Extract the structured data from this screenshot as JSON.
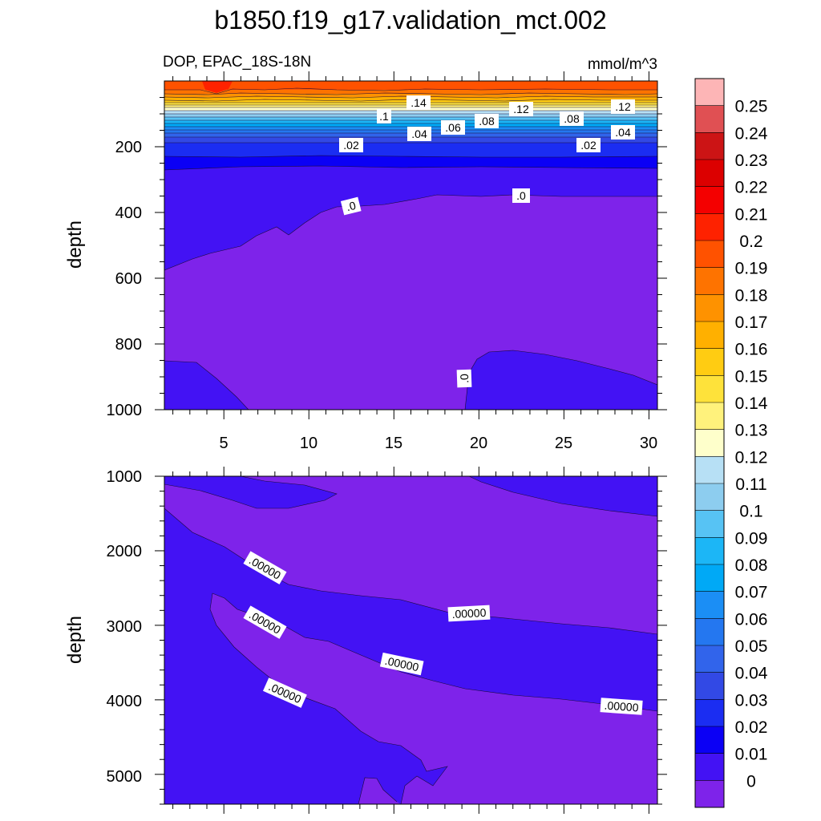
{
  "title": "b1850.f19_g17.validation_mct.002",
  "left_subtitle": "DOP, EPAC_18S-18N",
  "right_subtitle": "mmol/m^3",
  "chart_data": [
    {
      "type": "heatmap",
      "panel": "upper",
      "variable": "DOP",
      "region": "EPAC_18S-18N",
      "units": "mmol/m^3",
      "xlabel": "",
      "ylabel": "depth",
      "xlim": [
        1.5,
        30.5
      ],
      "ylim": [
        0,
        1000
      ],
      "y_inverted": true,
      "x_ticks": [
        5,
        10,
        15,
        20,
        25,
        30
      ],
      "y_ticks": [
        200,
        400,
        600,
        800,
        1000
      ],
      "x": [
        2,
        5,
        7,
        10,
        15,
        20,
        25,
        30
      ],
      "depth": [
        10,
        50,
        100,
        150,
        200,
        300,
        400,
        600,
        800,
        900,
        1000
      ],
      "values_by_depth": [
        [
          0.18,
          0.19,
          0.18,
          0.18,
          0.17,
          0.17,
          0.17,
          0.16
        ],
        [
          0.16,
          0.16,
          0.16,
          0.16,
          0.15,
          0.15,
          0.15,
          0.14
        ],
        [
          0.1,
          0.11,
          0.11,
          0.1,
          0.1,
          0.09,
          0.09,
          0.1
        ],
        [
          0.05,
          0.05,
          0.05,
          0.05,
          0.04,
          0.04,
          0.04,
          0.05
        ],
        [
          0.02,
          0.02,
          0.02,
          0.02,
          0.015,
          0.015,
          0.015,
          0.02
        ],
        [
          0.005,
          0.005,
          0.005,
          0.005,
          0.005,
          0.005,
          0.005,
          0.005
        ],
        [
          0.005,
          0.005,
          0.005,
          0.005,
          0,
          0,
          0,
          0
        ],
        [
          0.005,
          0,
          0,
          0,
          0,
          0,
          0,
          0
        ],
        [
          0,
          0,
          0,
          0,
          0,
          0,
          0,
          0
        ],
        [
          0.005,
          0.005,
          0,
          0,
          0,
          0.005,
          0.005,
          0.005
        ],
        [
          0.005,
          0.005,
          0,
          0,
          0,
          0.005,
          0.005,
          0.005
        ]
      ],
      "contour_labels": [
        ".14",
        ".12",
        ".12",
        ".1",
        ".08",
        ".08",
        ".06",
        ".04",
        ".04",
        ".02",
        ".02",
        ".0",
        ".0",
        ".0"
      ]
    },
    {
      "type": "heatmap",
      "panel": "lower",
      "variable": "DOP",
      "units": "mmol/m^3",
      "xlabel": "",
      "ylabel": "depth",
      "xlim": [
        1.5,
        30.5
      ],
      "ylim": [
        1000,
        5400
      ],
      "y_inverted": true,
      "y_ticks": [
        1000,
        2000,
        3000,
        4000,
        5000
      ],
      "x": [
        2,
        5,
        10,
        15,
        20,
        25,
        30
      ],
      "depth": [
        1000,
        1500,
        2000,
        2500,
        3000,
        3500,
        4000,
        4500,
        5000,
        5400
      ],
      "values_by_depth": [
        [
          0,
          0.005,
          0.005,
          0,
          0,
          0.005,
          0.005
        ],
        [
          0.005,
          0,
          0,
          0,
          0,
          0,
          0.005
        ],
        [
          0.005,
          0.005,
          0,
          0,
          0,
          0,
          0
        ],
        [
          0.005,
          0.005,
          0.005,
          0.005,
          0,
          0,
          0
        ],
        [
          0.005,
          0.005,
          0,
          0.005,
          0.005,
          0.005,
          0.005
        ],
        [
          0.005,
          0.005,
          0,
          0,
          0.005,
          0.005,
          0.005
        ],
        [
          0.005,
          0.005,
          0.005,
          0,
          0,
          0,
          0
        ],
        [
          0.005,
          0.005,
          0.005,
          0.005,
          0,
          0,
          0
        ],
        [
          0.005,
          0.005,
          0.005,
          0.005,
          0,
          0,
          0
        ],
        [
          0.005,
          0.005,
          0,
          0.005,
          0,
          0,
          0
        ]
      ],
      "contour_labels": [
        ".00000",
        ".00000",
        ".00000",
        ".00000",
        ".00000",
        ".00000"
      ]
    }
  ],
  "colorbar": {
    "labels": [
      "0.25",
      "0.24",
      "0.23",
      "0.22",
      "0.21",
      "0.2",
      "0.19",
      "0.18",
      "0.17",
      "0.16",
      "0.15",
      "0.14",
      "0.13",
      "0.12",
      "0.11",
      "0.1",
      "0.09",
      "0.08",
      "0.07",
      "0.06",
      "0.05",
      "0.04",
      "0.03",
      "0.02",
      "0.01",
      "0"
    ],
    "colors_top_to_bottom": [
      "#fdb5b6",
      "#e05053",
      "#cc1415",
      "#dc0000",
      "#f40000",
      "#fe2200",
      "#ff5200",
      "#fe7300",
      "#fe9200",
      "#ffb000",
      "#ffcc12",
      "#fee23a",
      "#fff27c",
      "#feffcb",
      "#b7e0f5",
      "#8dcdef",
      "#57c3f4",
      "#1cb6f6",
      "#00a9f6",
      "#1b8ef5",
      "#2477f0",
      "#3164eb",
      "#3249e5",
      "#1b2df2",
      "#0b00f5",
      "#4312f4",
      "#7e23ea"
    ]
  }
}
